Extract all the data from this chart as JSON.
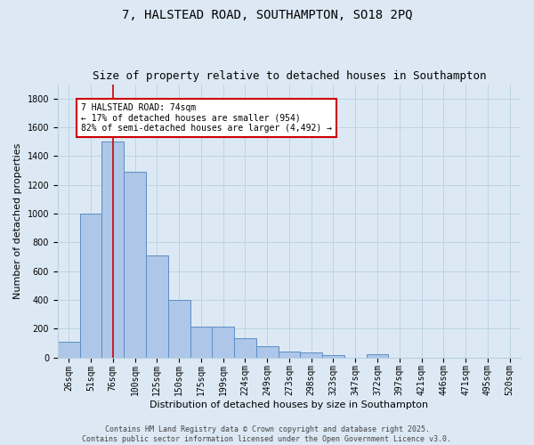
{
  "title1": "7, HALSTEAD ROAD, SOUTHAMPTON, SO18 2PQ",
  "title2": "Size of property relative to detached houses in Southampton",
  "xlabel": "Distribution of detached houses by size in Southampton",
  "ylabel": "Number of detached properties",
  "categories": [
    "26sqm",
    "51sqm",
    "76sqm",
    "100sqm",
    "125sqm",
    "150sqm",
    "175sqm",
    "199sqm",
    "224sqm",
    "249sqm",
    "273sqm",
    "298sqm",
    "323sqm",
    "347sqm",
    "372sqm",
    "397sqm",
    "421sqm",
    "446sqm",
    "471sqm",
    "495sqm",
    "520sqm"
  ],
  "values": [
    110,
    1000,
    1500,
    1290,
    710,
    400,
    215,
    215,
    135,
    75,
    40,
    35,
    15,
    0,
    20,
    0,
    0,
    0,
    0,
    0,
    0
  ],
  "bar_color": "#aec6e8",
  "bar_edge_color": "#5b8ec4",
  "background_color": "#dce9f5",
  "vline_x": 2,
  "vline_color": "#cc0000",
  "annotation_text": "7 HALSTEAD ROAD: 74sqm\n← 17% of detached houses are smaller (954)\n82% of semi-detached houses are larger (4,492) →",
  "annotation_box_color": "#ffffff",
  "annotation_box_edge": "#cc0000",
  "footer_text": "Contains HM Land Registry data © Crown copyright and database right 2025.\nContains public sector information licensed under the Open Government Licence v3.0.",
  "ylim": [
    0,
    1900
  ],
  "yticks": [
    0,
    200,
    400,
    600,
    800,
    1000,
    1200,
    1400,
    1600,
    1800
  ],
  "title_fontsize": 10,
  "subtitle_fontsize": 9,
  "axis_label_fontsize": 8,
  "tick_fontsize": 7,
  "annotation_fontsize": 7,
  "footer_fontsize": 6
}
